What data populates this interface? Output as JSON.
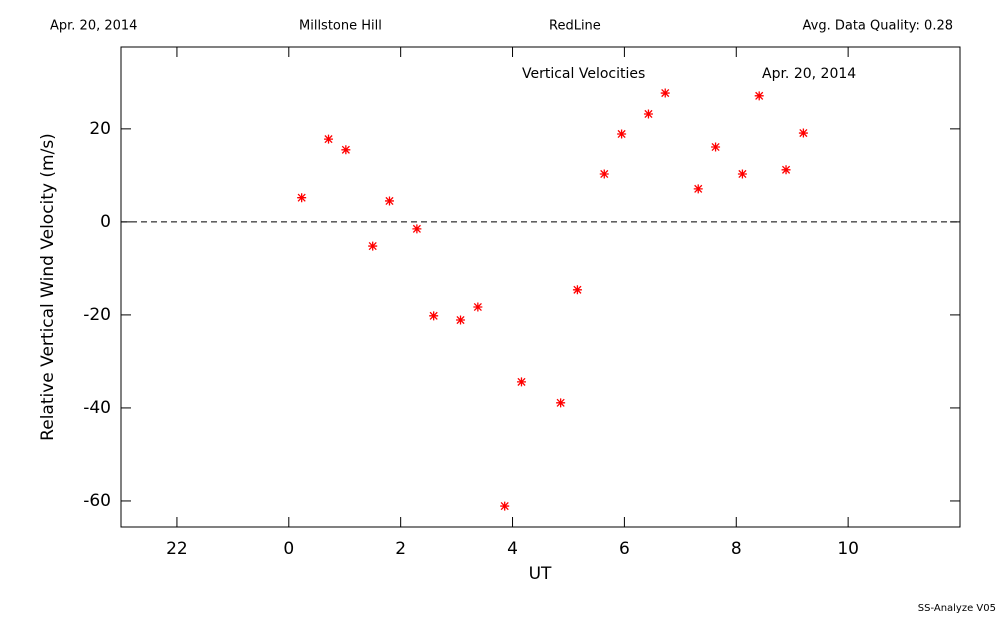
{
  "header": {
    "date": "Apr. 20, 2014",
    "site": "Millstone Hill",
    "line": "RedLine",
    "quality": "Avg. Data Quality: 0.28"
  },
  "footer": "SS-Analyze V05",
  "chart_data": {
    "type": "scatter",
    "annotations": [
      "Vertical Velocities",
      "Apr. 20, 2014"
    ],
    "xlabel": "UT",
    "ylabel": "Relative Vertical Wind Velocity (m/s)",
    "xlim": [
      -3,
      12
    ],
    "ylim": [
      -65.6,
      37.6
    ],
    "xticks": [
      {
        "value": -2,
        "label": "22"
      },
      0,
      2,
      4,
      6,
      8,
      10
    ],
    "yticks": [
      -60,
      -40,
      -20,
      0,
      20
    ],
    "reference_y": 0,
    "series": [
      {
        "color": "#ff0000",
        "x": [
          0.23,
          0.71,
          1.02,
          1.5,
          1.8,
          2.29,
          2.59,
          3.07,
          3.38,
          3.86,
          4.16,
          4.86,
          5.16,
          5.64,
          5.95,
          6.43,
          6.73,
          7.32,
          7.63,
          8.11,
          8.41,
          8.89,
          9.2
        ],
        "values": [
          5.2,
          17.8,
          15.5,
          -5.2,
          4.5,
          -1.5,
          -20.2,
          -21.1,
          -18.3,
          -61.1,
          -34.4,
          -38.9,
          -14.6,
          10.3,
          18.9,
          23.2,
          27.7,
          7.1,
          16.1,
          10.3,
          27.1,
          11.2,
          19.1
        ]
      }
    ]
  }
}
